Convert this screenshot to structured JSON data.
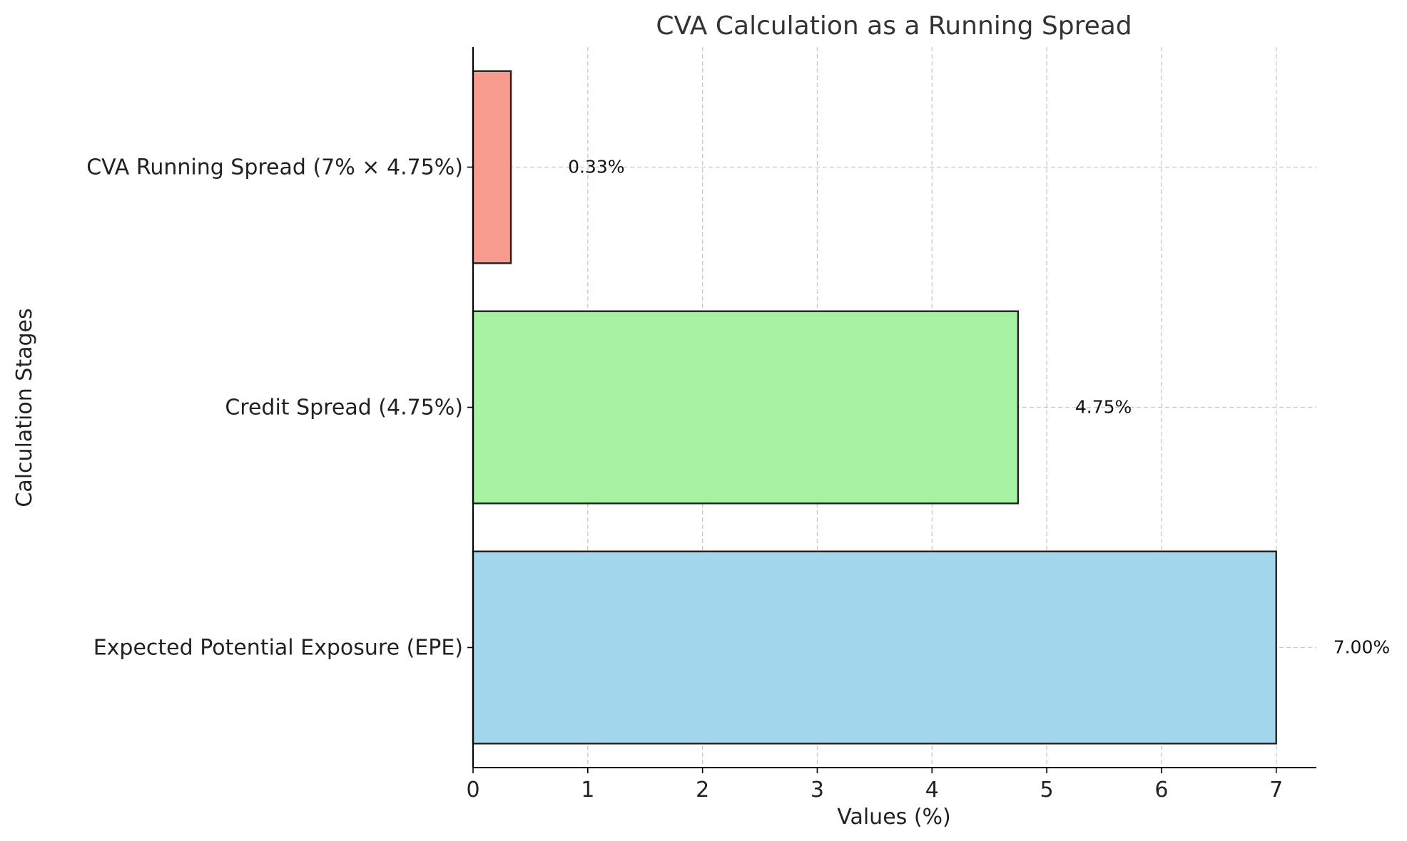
{
  "chart_data": {
    "type": "bar",
    "orientation": "horizontal",
    "title": "CVA Calculation as a Running Spread",
    "xlabel": "Values (%)",
    "ylabel": "Calculation Stages",
    "xlim": [
      0,
      7.35
    ],
    "xticks": [
      0,
      1,
      2,
      3,
      4,
      5,
      6,
      7
    ],
    "grid": true,
    "categories": [
      "Expected Potential Exposure (EPE)",
      "Credit Spread (4.75%)",
      "CVA Running Spread (7% × 4.75%)"
    ],
    "values": [
      7.0,
      4.75,
      0.33
    ],
    "data_labels": [
      "7.00%",
      "4.75%",
      "0.33%"
    ],
    "colors": [
      "#a2d6ec",
      "#a6f1a2",
      "#f89b8f"
    ]
  }
}
